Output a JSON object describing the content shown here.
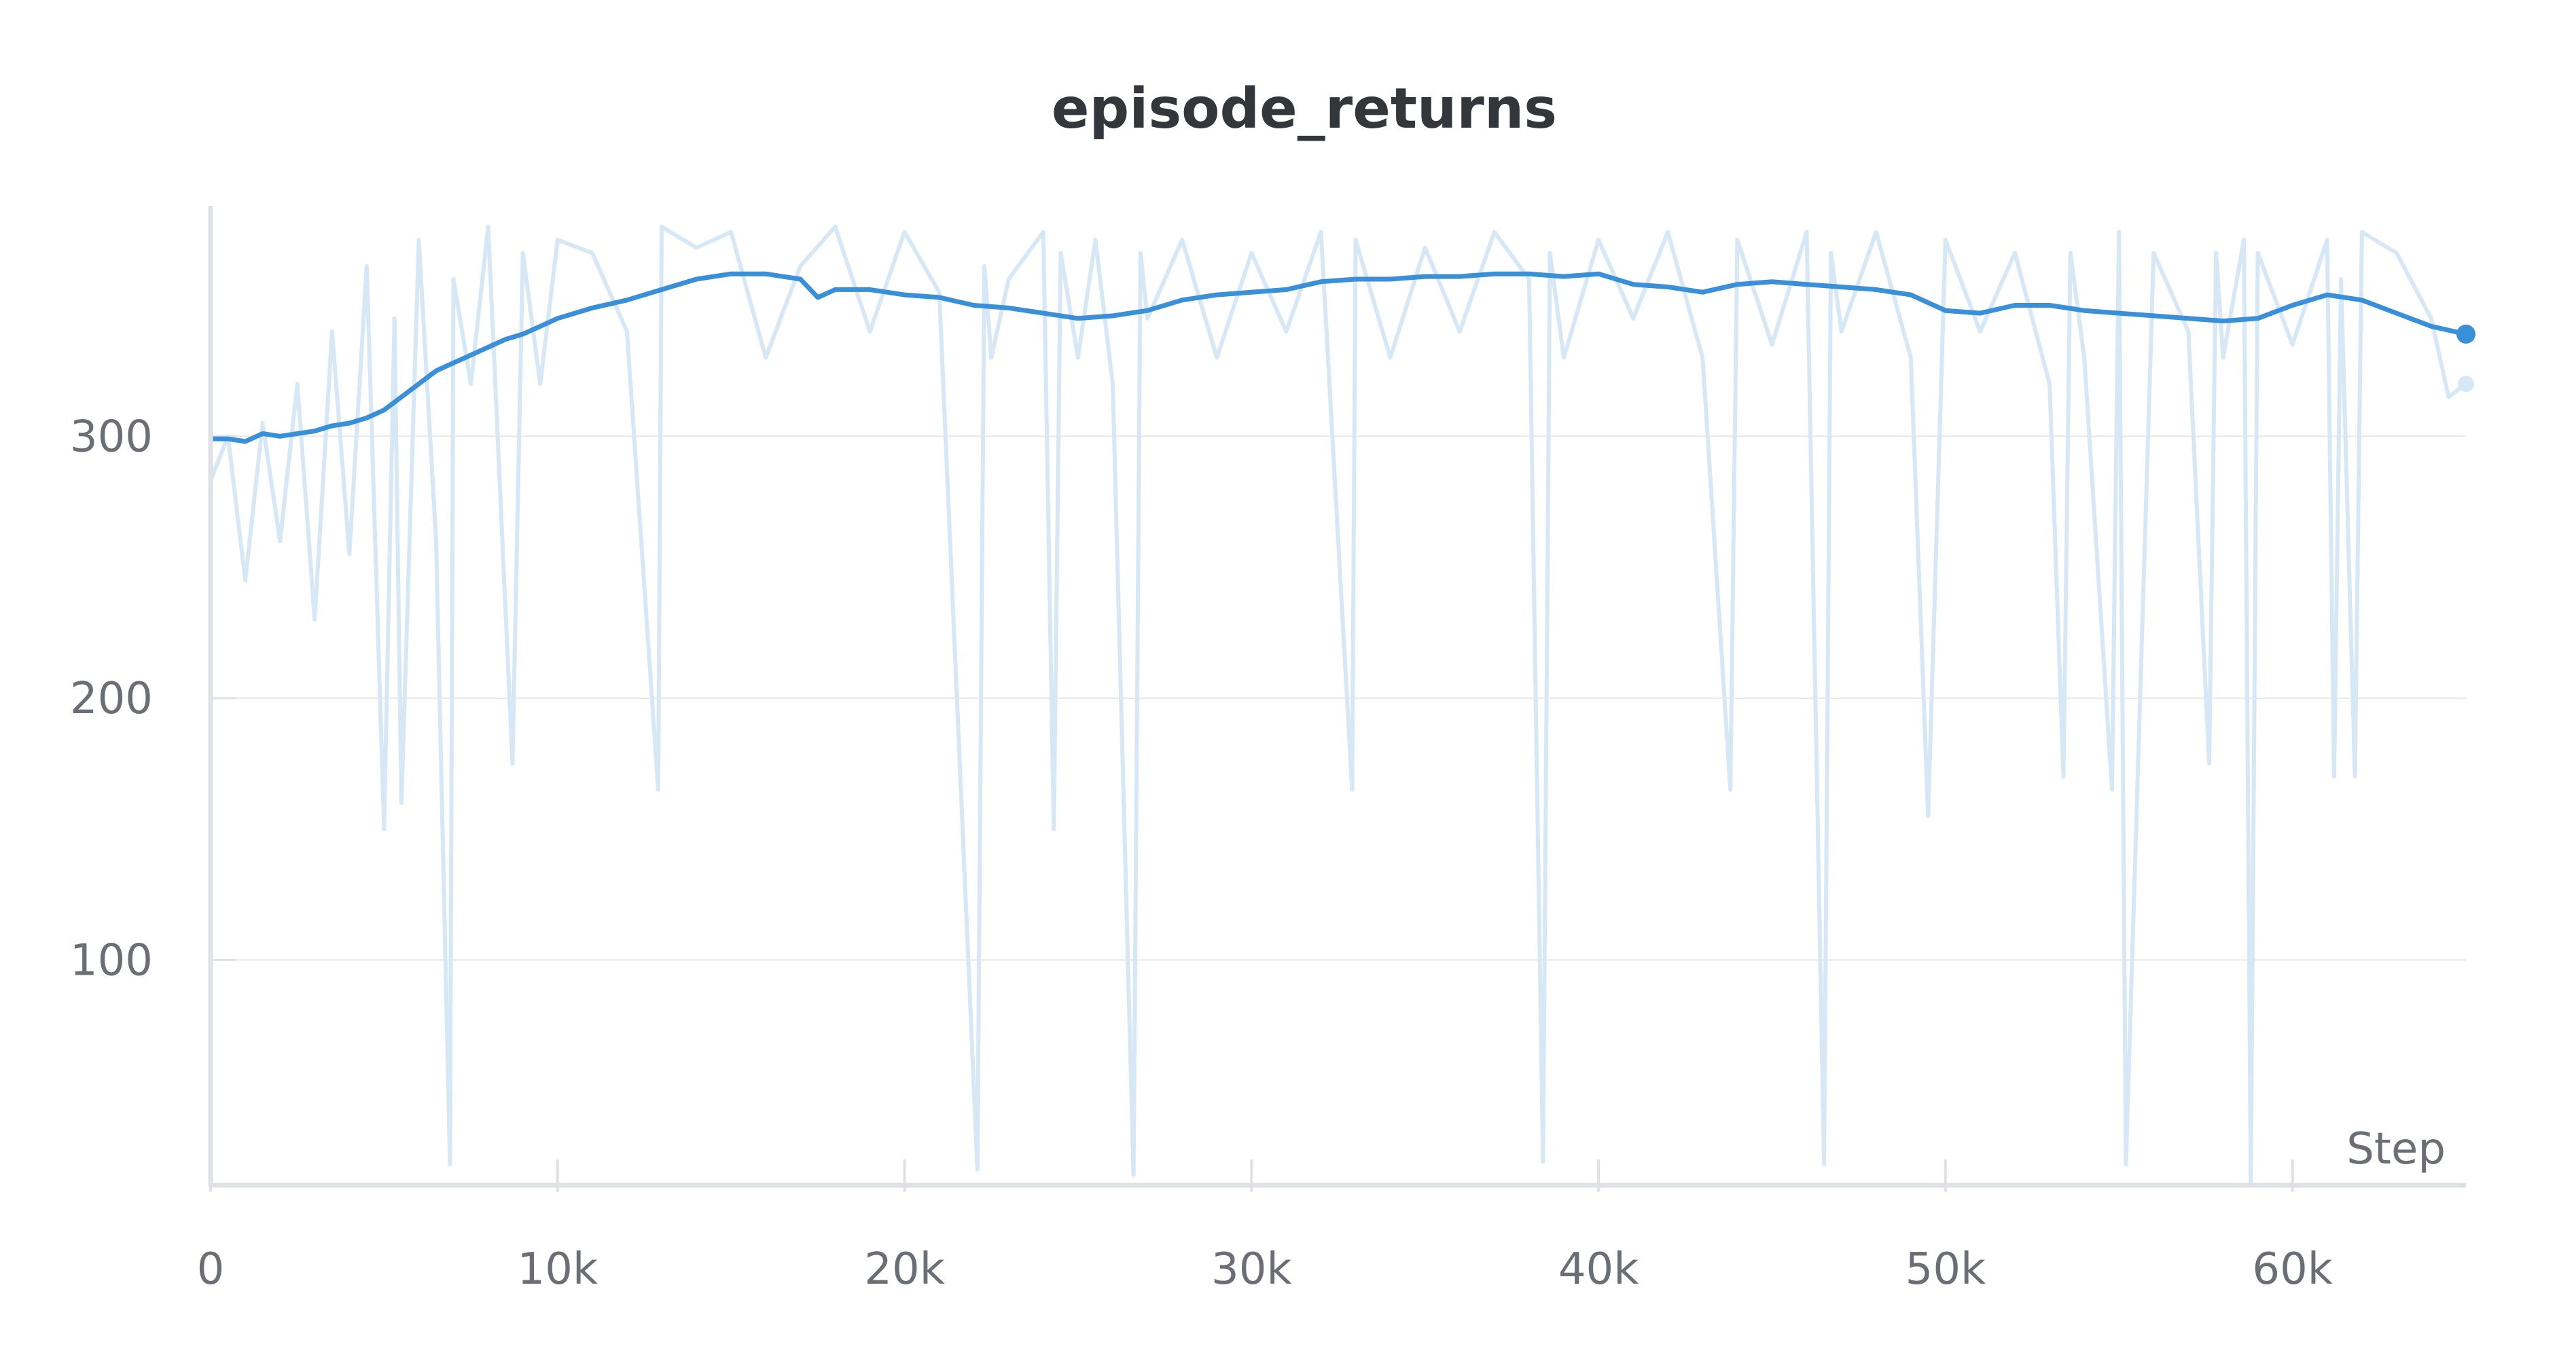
{
  "chart_data": {
    "type": "line",
    "title": "episode_returns",
    "xlabel": "Step",
    "ylabel": "",
    "xlim": [
      0,
      65000
    ],
    "ylim": [
      14,
      388
    ],
    "x_ticks": [
      {
        "value": 0,
        "label": "0"
      },
      {
        "value": 10000,
        "label": "10k"
      },
      {
        "value": 20000,
        "label": "20k"
      },
      {
        "value": 30000,
        "label": "30k"
      },
      {
        "value": 40000,
        "label": "40k"
      },
      {
        "value": 50000,
        "label": "50k"
      },
      {
        "value": 60000,
        "label": "60k"
      }
    ],
    "y_ticks": [
      {
        "value": 100,
        "label": "100"
      },
      {
        "value": 200,
        "label": "200"
      },
      {
        "value": 300,
        "label": "300"
      }
    ],
    "grid": "horizontal",
    "colors": {
      "raw": "#d6e7f6",
      "smoothed": "#3a8fd9",
      "grid": "#e6e8eb",
      "axis": "#dfe1e4",
      "title": "#33363b",
      "tick_text": "#6b6e75"
    },
    "series": [
      {
        "role": "raw",
        "x": [
          0,
          500,
          1000,
          1500,
          2000,
          2500,
          3000,
          3500,
          4000,
          4500,
          5000,
          5300,
          5500,
          6000,
          6500,
          6900,
          7000,
          7500,
          8000,
          8700,
          9000,
          9500,
          10000,
          11000,
          12000,
          12900,
          13000,
          14000,
          15000,
          16000,
          17000,
          18000,
          19000,
          20000,
          21000,
          22100,
          22300,
          22500,
          23000,
          24000,
          24300,
          24500,
          25000,
          25500,
          26000,
          26600,
          26800,
          27000,
          28000,
          29000,
          30000,
          31000,
          32000,
          32900,
          33000,
          34000,
          35000,
          36000,
          37000,
          38000,
          38400,
          38600,
          39000,
          40000,
          41000,
          42000,
          43000,
          43800,
          44000,
          45000,
          46000,
          46500,
          46700,
          47000,
          48000,
          49000,
          49500,
          50000,
          51000,
          52000,
          53000,
          53400,
          53600,
          54000,
          54800,
          55000,
          55200,
          56000,
          57000,
          57600,
          57800,
          58000,
          58600,
          58800,
          59000,
          60000,
          61000,
          61200,
          61400,
          61800,
          62000,
          63000,
          64000,
          64500,
          65000
        ],
        "y": [
          283,
          300,
          245,
          305,
          260,
          320,
          230,
          340,
          255,
          365,
          150,
          345,
          160,
          375,
          260,
          22,
          360,
          320,
          380,
          175,
          370,
          320,
          375,
          370,
          340,
          165,
          380,
          372,
          378,
          330,
          365,
          380,
          340,
          378,
          355,
          20,
          365,
          330,
          360,
          378,
          150,
          370,
          330,
          375,
          320,
          18,
          370,
          345,
          375,
          330,
          370,
          340,
          378,
          165,
          375,
          330,
          372,
          340,
          378,
          360,
          23,
          370,
          330,
          375,
          345,
          378,
          330,
          165,
          375,
          335,
          378,
          22,
          370,
          340,
          378,
          330,
          155,
          375,
          340,
          370,
          320,
          170,
          370,
          330,
          165,
          378,
          22,
          370,
          340,
          175,
          370,
          330,
          375,
          15,
          370,
          335,
          375,
          170,
          360,
          170,
          378,
          370,
          345,
          315,
          320
        ]
      },
      {
        "role": "smoothed",
        "x": [
          0,
          500,
          1000,
          1500,
          2000,
          2500,
          3000,
          3500,
          4000,
          4500,
          5000,
          5500,
          6000,
          6500,
          7000,
          7500,
          8000,
          8500,
          9000,
          9500,
          10000,
          10500,
          11000,
          12000,
          13000,
          14000,
          15000,
          16000,
          17000,
          17500,
          18000,
          19000,
          20000,
          21000,
          22000,
          23000,
          24000,
          25000,
          26000,
          27000,
          28000,
          29000,
          30000,
          31000,
          32000,
          33000,
          34000,
          35000,
          36000,
          37000,
          38000,
          39000,
          40000,
          41000,
          42000,
          43000,
          44000,
          45000,
          46000,
          47000,
          48000,
          49000,
          50000,
          51000,
          52000,
          53000,
          54000,
          55000,
          56000,
          57000,
          58000,
          59000,
          60000,
          61000,
          62000,
          63000,
          64000,
          65000
        ],
        "y": [
          299,
          299,
          298,
          301,
          300,
          301,
          302,
          304,
          305,
          307,
          310,
          315,
          320,
          325,
          328,
          331,
          334,
          337,
          339,
          342,
          345,
          347,
          349,
          352,
          356,
          360,
          362,
          362,
          360,
          353,
          356,
          356,
          354,
          353,
          350,
          349,
          347,
          345,
          346,
          348,
          352,
          354,
          355,
          356,
          359,
          360,
          360,
          361,
          361,
          362,
          362,
          361,
          362,
          358,
          357,
          355,
          358,
          359,
          358,
          357,
          356,
          354,
          348,
          347,
          350,
          350,
          348,
          347,
          346,
          345,
          344,
          345,
          350,
          354,
          352,
          347,
          342,
          339
        ]
      }
    ]
  }
}
